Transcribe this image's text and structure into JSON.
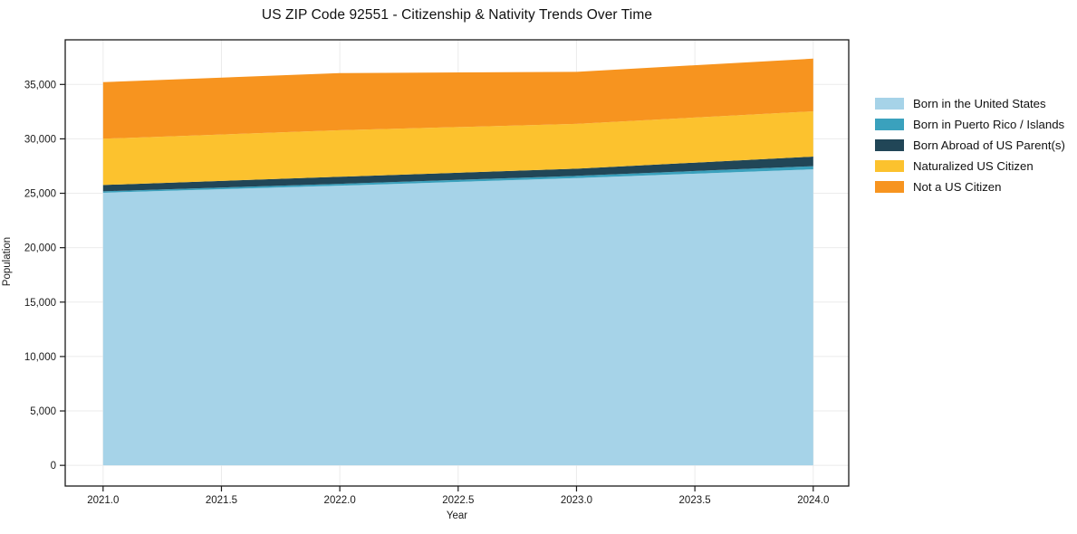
{
  "header": {
    "title": "US ZIP Code 92551 - Citizenship & Nativity Trends Over Time"
  },
  "chart_data": {
    "type": "area",
    "stacked": true,
    "title": "US ZIP Code 92551 - Citizenship & Nativity Trends Over Time",
    "xlabel": "Year",
    "ylabel": "Population",
    "x": [
      2021,
      2022,
      2023,
      2024
    ],
    "series": [
      {
        "name": "Born in the United States",
        "color": "#a6d3e8",
        "values": [
          25050,
          25700,
          26400,
          27200
        ]
      },
      {
        "name": "Born in Puerto Rico / Islands",
        "color": "#3aa1bd",
        "values": [
          130,
          170,
          200,
          290
        ]
      },
      {
        "name": "Born Abroad of US Parent(s)",
        "color": "#214657",
        "values": [
          580,
          650,
          660,
          880
        ]
      },
      {
        "name": "Naturalized US Citizen",
        "color": "#fcc22e",
        "values": [
          4250,
          4270,
          4120,
          4160
        ]
      },
      {
        "name": "Not a US Citizen",
        "color": "#f7941f",
        "values": [
          5200,
          5250,
          4780,
          4840
        ]
      }
    ],
    "totals": [
      35210,
      36040,
      36160,
      37370
    ],
    "xlim": [
      2020.84,
      2024.15
    ],
    "ylim": [
      -1900,
      39100
    ],
    "xticks": {
      "values": [
        2021.0,
        2021.5,
        2022.0,
        2022.5,
        2023.0,
        2023.5,
        2024.0
      ],
      "labels": [
        "2021.0",
        "2021.5",
        "2022.0",
        "2022.5",
        "2023.0",
        "2023.5",
        "2024.0"
      ]
    },
    "yticks": {
      "values": [
        0,
        5000,
        10000,
        15000,
        20000,
        25000,
        30000,
        35000
      ],
      "labels": [
        "0",
        "5,000",
        "10,000",
        "15,000",
        "20,000",
        "25,000",
        "30,000",
        "35,000"
      ]
    },
    "grid": true,
    "legend_position": "right"
  },
  "colors": {
    "gridline": "#ebebeb",
    "axis": "#1a1a1a",
    "background": "#ffffff"
  }
}
